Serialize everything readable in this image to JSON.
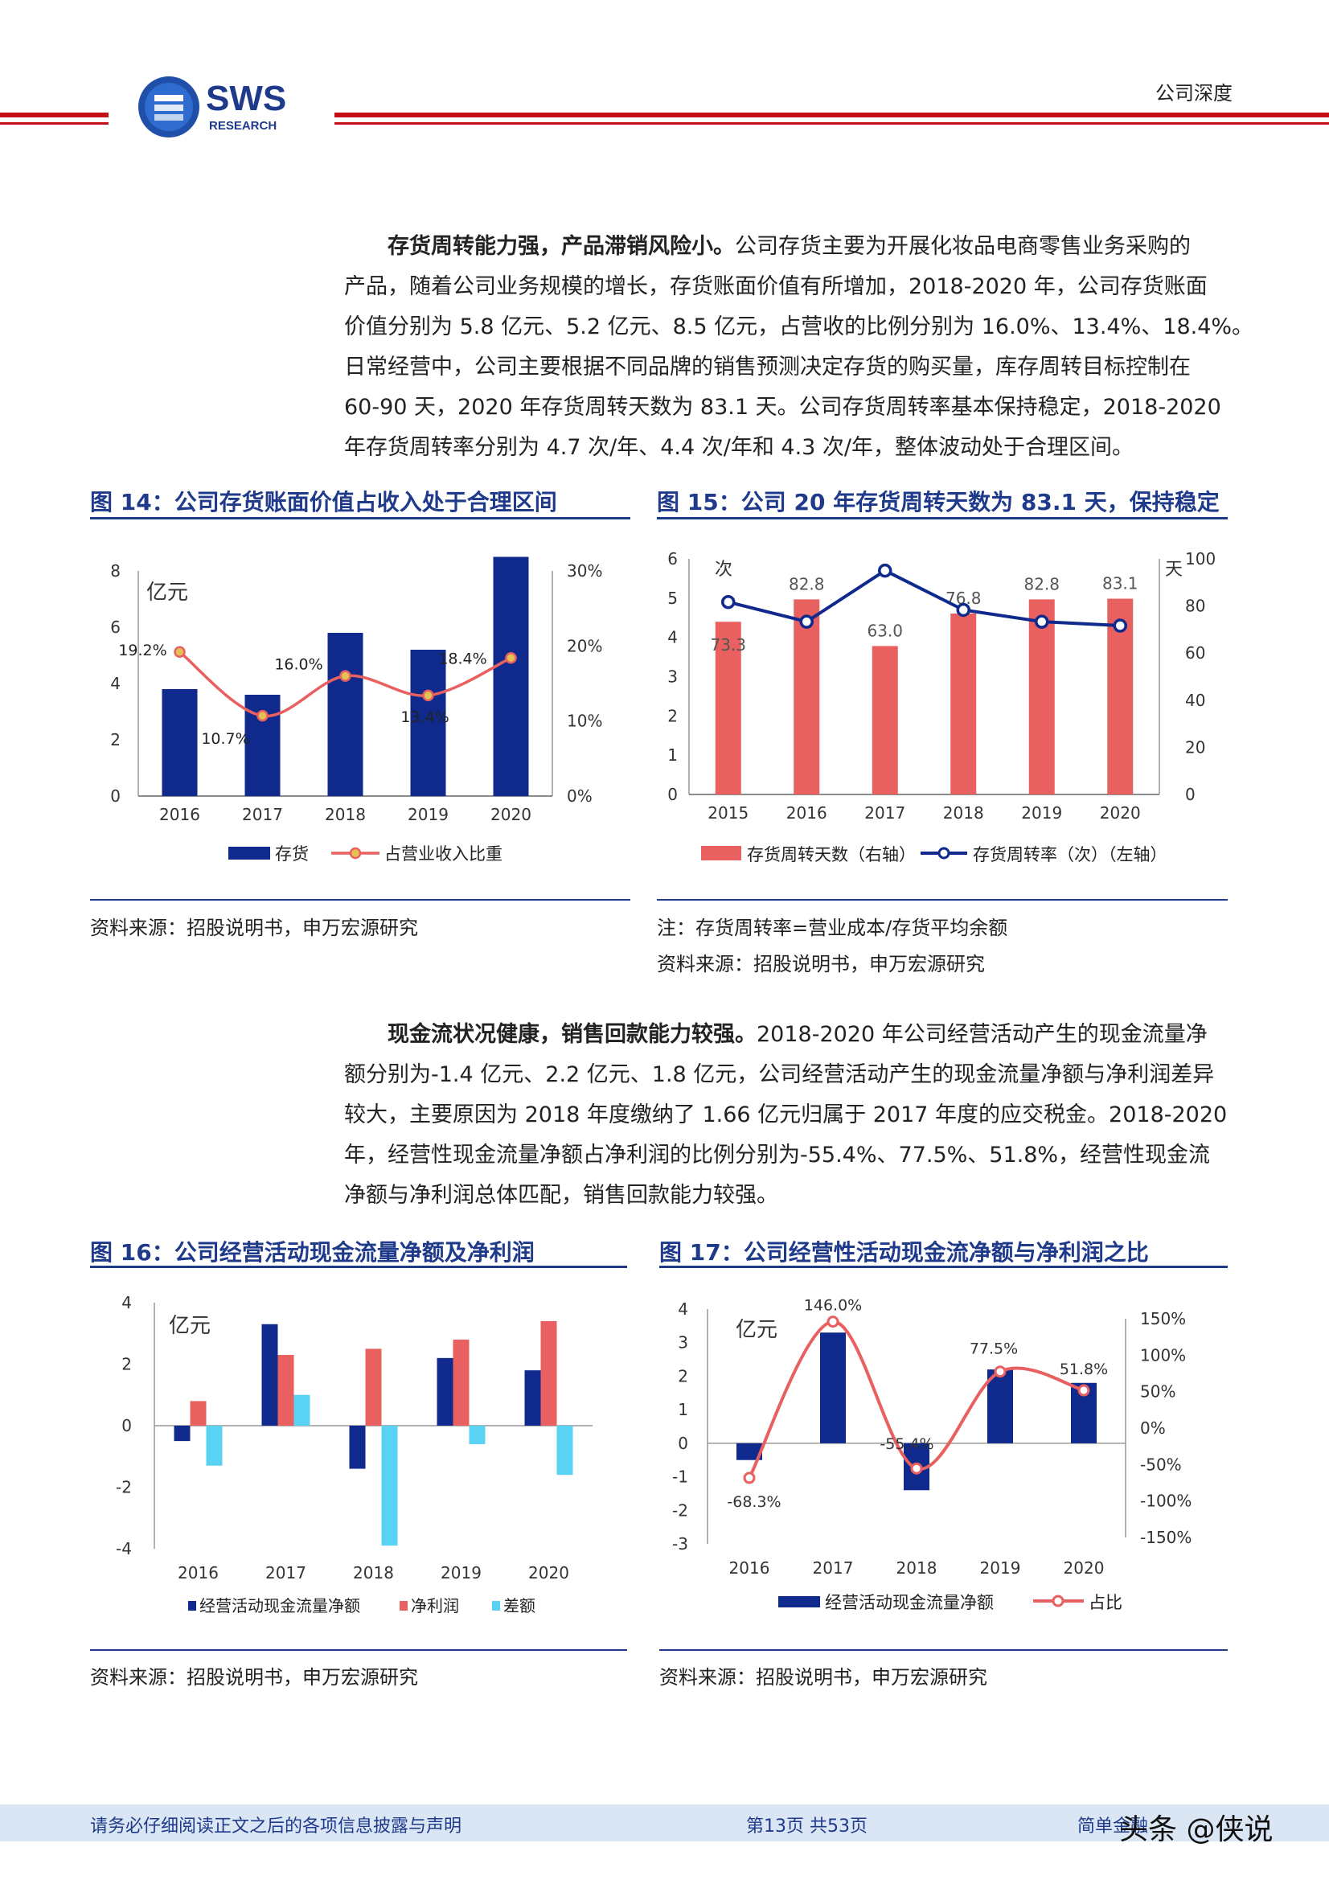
{
  "header": {
    "logo_text": "SWS",
    "logo_sub": "RESEARCH",
    "section_label": "公司深度"
  },
  "para1": {
    "lead": "存货周转能力强，产品滞销风险小。",
    "l1": "公司存货主要为开展化妆品电商零售业务采购的",
    "l2": "产品，随着公司业务规模的增长，存货账面价值有所增加，2018-2020 年，公司存货账面",
    "l3": "价值分别为 5.8 亿元、5.2 亿元、8.5 亿元，占营收的比例分别为 16.0%、13.4%、18.4%。",
    "l4": "日常经营中，公司主要根据不同品牌的销售预测决定存货的购买量，库存周转目标控制在",
    "l5": "60-90 天，2020 年存货周转天数为 83.1 天。公司存货周转率基本保持稳定，2018-2020",
    "l6": "年存货周转率分别为 4.7 次/年、4.4 次/年和 4.3 次/年，整体波动处于合理区间。"
  },
  "para2": {
    "lead": "现金流状况健康，销售回款能力较强。",
    "l1": "2018-2020 年公司经营活动产生的现金流量净",
    "l2": "额分别为-1.4 亿元、2.2 亿元、1.8 亿元，公司经营活动产生的现金流量净额与净利润差异",
    "l3": "较大，主要原因为 2018 年度缴纳了 1.66 亿元归属于 2017 年度的应交税金。2018-2020",
    "l4": "年，经营性现金流量净额占净利润的比例分别为-55.4%、77.5%、51.8%，经营性现金流",
    "l5": "净额与净利润总体匹配，销售回款能力较强。"
  },
  "fig14": {
    "title": "图 14：公司存货账面价值占收入处于合理区间",
    "source": "资料来源：招股说明书，申万宏源研究"
  },
  "fig15": {
    "title": "图 15：公司 20 年存货周转天数为 83.1 天，保持稳定",
    "note": "注：存货周转率=营业成本/存货平均余额",
    "source": "资料来源：招股说明书，申万宏源研究"
  },
  "fig16": {
    "title": "图 16：公司经营活动现金流量净额及净利润",
    "source": "资料来源：招股说明书，申万宏源研究"
  },
  "fig17": {
    "title": "图 17：公司经营性活动现金流净额与净利润之比",
    "source": "资料来源：招股说明书，申万宏源研究"
  },
  "footer": {
    "disclaimer": "请务必仔细阅读正文之后的各项信息披露与声明",
    "page": "第13页  共53页",
    "brand": "简单金融",
    "watermark": "头条 @侠说"
  },
  "colors": {
    "navy": "#0f2a8c",
    "red": "#e8605f",
    "cyan": "#5ad2f4",
    "title_blue": "#1f3a8a",
    "brand_red": "#c40f16"
  },
  "chart_data": [
    {
      "id": "fig14",
      "type": "bar+line",
      "categories": [
        "2016",
        "2017",
        "2018",
        "2019",
        "2020"
      ],
      "unit_label": "亿元",
      "left_ticks": [
        "8",
        "6",
        "4",
        "2",
        "0"
      ],
      "right_ticks": [
        "30%",
        "20%",
        "10%",
        "0%"
      ],
      "ylim_left": [
        0,
        8
      ],
      "ylim_right": [
        0,
        30
      ],
      "series": [
        {
          "name": "存货",
          "type": "bar",
          "axis": "left",
          "values": [
            3.8,
            3.6,
            5.8,
            5.2,
            8.5
          ]
        },
        {
          "name": "占营业收入比重",
          "type": "line",
          "axis": "right",
          "values": [
            19.2,
            10.7,
            16.0,
            13.4,
            18.4
          ],
          "labels": [
            "19.2%",
            "10.7%",
            "16.0%",
            "13.4%",
            "18.4%"
          ]
        }
      ]
    },
    {
      "id": "fig15",
      "type": "bar+line",
      "categories": [
        "2015",
        "2016",
        "2017",
        "2018",
        "2019",
        "2020"
      ],
      "left_unit": "次",
      "right_unit": "天",
      "left_ticks": [
        "6",
        "5",
        "4",
        "3",
        "2",
        "1",
        "0"
      ],
      "right_ticks": [
        "100",
        "80",
        "60",
        "40",
        "20",
        "0"
      ],
      "ylim_left": [
        0,
        6
      ],
      "ylim_right": [
        0,
        100
      ],
      "series": [
        {
          "name": "存货周转天数（右轴）",
          "type": "bar",
          "axis": "right",
          "values": [
            73.3,
            82.8,
            63.0,
            76.8,
            82.8,
            83.1
          ],
          "labels": [
            "73.3",
            "82.8",
            "63.0",
            "76.8",
            "82.8",
            "83.1"
          ]
        },
        {
          "name": "存货周转率（次）（左轴）",
          "type": "line",
          "axis": "left",
          "values": [
            4.9,
            4.4,
            5.7,
            4.7,
            4.4,
            4.3
          ]
        }
      ]
    },
    {
      "id": "fig16",
      "type": "bar",
      "categories": [
        "2016",
        "2017",
        "2018",
        "2019",
        "2020"
      ],
      "unit_label": "亿元",
      "left_ticks": [
        "4",
        "2",
        "0",
        "-2",
        "-4"
      ],
      "ylim": [
        -4,
        4
      ],
      "series": [
        {
          "name": "经营活动现金流量净额",
          "values": [
            -0.5,
            3.3,
            -1.4,
            2.2,
            1.8
          ]
        },
        {
          "name": "净利润",
          "values": [
            0.8,
            2.3,
            2.5,
            2.8,
            3.4
          ]
        },
        {
          "name": "差额",
          "values": [
            -1.3,
            1.0,
            -3.9,
            -0.6,
            -1.6
          ]
        }
      ]
    },
    {
      "id": "fig17",
      "type": "bar+line",
      "categories": [
        "2016",
        "2017",
        "2018",
        "2019",
        "2020"
      ],
      "unit_label": "亿元",
      "left_ticks": [
        "4",
        "3",
        "2",
        "1",
        "0",
        "-1",
        "-2",
        "-3"
      ],
      "right_ticks": [
        "150%",
        "100%",
        "50%",
        "0%",
        "-50%",
        "-100%",
        "-150%"
      ],
      "ylim_left": [
        -3,
        4
      ],
      "ylim_right": [
        -150,
        150
      ],
      "series": [
        {
          "name": "经营活动现金流量净额",
          "type": "bar",
          "axis": "left",
          "values": [
            -0.5,
            3.3,
            -1.4,
            2.2,
            1.8
          ]
        },
        {
          "name": "占比",
          "type": "line",
          "axis": "right",
          "values": [
            -68.3,
            146.0,
            -55.4,
            77.5,
            51.8
          ],
          "labels": [
            "-68.3%",
            "146.0%",
            "-55.4%",
            "77.5%",
            "51.8%"
          ]
        }
      ]
    }
  ]
}
